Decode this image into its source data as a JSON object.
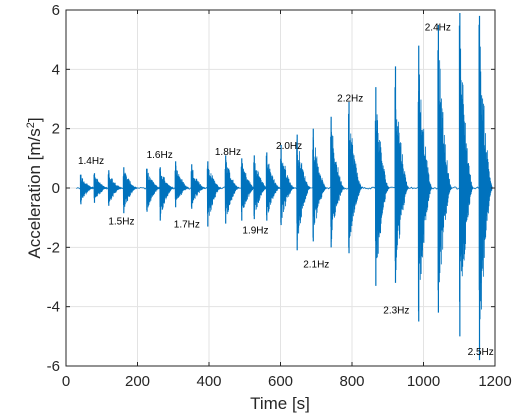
{
  "chart_data": {
    "type": "line",
    "title": "",
    "xlabel": "Time [s]",
    "ylabel_main": "Acceleration [m/s",
    "ylabel_sup": "2",
    "ylabel_tail": "]",
    "xlim": [
      0,
      1200
    ],
    "ylim": [
      -6,
      6
    ],
    "xticks": [
      0,
      200,
      400,
      600,
      800,
      1000,
      1200
    ],
    "yticks": [
      -6,
      -4,
      -2,
      0,
      2,
      4,
      6
    ],
    "grid": true,
    "color": "#0072BD",
    "bursts": [
      {
        "t": 40,
        "up": 0.45,
        "down": -0.55
      },
      {
        "t": 78,
        "up": 0.5,
        "down": -0.5
      },
      {
        "t": 118,
        "up": 0.6,
        "down": -0.6
      },
      {
        "t": 160,
        "up": 0.7,
        "down": -0.85
      },
      {
        "t": 225,
        "up": 0.65,
        "down": -0.8
      },
      {
        "t": 262,
        "up": 0.7,
        "down": -1.1
      },
      {
        "t": 305,
        "up": 0.9,
        "down": -0.65
      },
      {
        "t": 350,
        "up": 0.8,
        "down": -0.7
      },
      {
        "t": 395,
        "up": 0.9,
        "down": -1.3
      },
      {
        "t": 445,
        "up": 1.1,
        "down": -1.2
      },
      {
        "t": 490,
        "up": 1.0,
        "down": -1.1
      },
      {
        "t": 525,
        "up": 1.1,
        "down": -1.05
      },
      {
        "t": 560,
        "up": 1.2,
        "down": -1.1
      },
      {
        "t": 600,
        "up": 1.45,
        "down": -1.25
      },
      {
        "t": 645,
        "up": 1.8,
        "down": -2.1
      },
      {
        "t": 690,
        "up": 2.0,
        "down": -1.8
      },
      {
        "t": 740,
        "up": 2.4,
        "down": -2.0
      },
      {
        "t": 790,
        "up": 2.9,
        "down": -2.2
      },
      {
        "t": 865,
        "up": 3.4,
        "down": -3.3
      },
      {
        "t": 920,
        "up": 4.1,
        "down": -3.2
      },
      {
        "t": 985,
        "up": 4.8,
        "down": -4.5
      },
      {
        "t": 1040,
        "up": 5.5,
        "down": -4.2
      },
      {
        "t": 1100,
        "up": 5.9,
        "down": -5.0
      },
      {
        "t": 1155,
        "up": 5.8,
        "down": -5.8
      }
    ],
    "annotations": [
      {
        "text": "1.4Hz",
        "x": 70,
        "y": 0.95
      },
      {
        "text": "1.5Hz",
        "x": 155,
        "y": -1.1
      },
      {
        "text": "1.6Hz",
        "x": 262,
        "y": 1.15
      },
      {
        "text": "1.7Hz",
        "x": 338,
        "y": -1.2
      },
      {
        "text": "1.8Hz",
        "x": 453,
        "y": 1.25
      },
      {
        "text": "1.9Hz",
        "x": 530,
        "y": -1.4
      },
      {
        "text": "2.0Hz",
        "x": 624,
        "y": 1.45
      },
      {
        "text": "2.1Hz",
        "x": 700,
        "y": -2.55
      },
      {
        "text": "2.2Hz",
        "x": 795,
        "y": 3.05
      },
      {
        "text": "2.3Hz",
        "x": 924,
        "y": -4.1
      },
      {
        "text": "2.4Hz",
        "x": 1040,
        "y": 5.45
      },
      {
        "text": "2.5Hz",
        "x": 1160,
        "y": -5.5
      }
    ]
  }
}
